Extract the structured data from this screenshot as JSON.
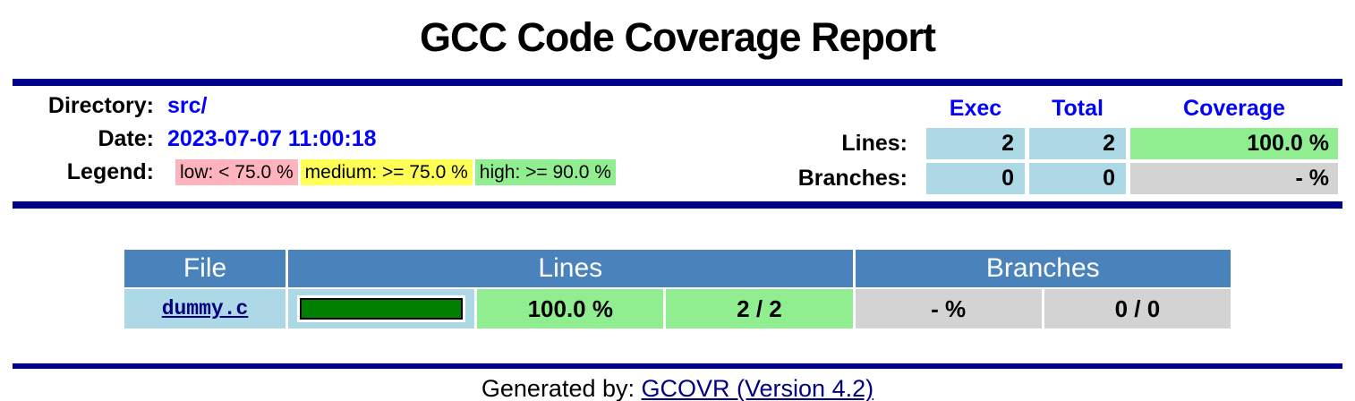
{
  "page": {
    "title": "GCC Code Coverage Report"
  },
  "summary": {
    "directory_label": "Directory:",
    "directory_value": "src/",
    "date_label": "Date:",
    "date_value": "2023-07-07 11:00:18",
    "legend_label": "Legend:",
    "legend": [
      {
        "name": "low",
        "label": "low: < 75.0 %",
        "color": "#FFB3BD"
      },
      {
        "name": "medium",
        "label": "medium: >= 75.0 %",
        "color": "#FFFF55"
      },
      {
        "name": "high",
        "label": "high: >= 90.0 %",
        "color": "#90EE90"
      }
    ],
    "metrics": {
      "col_headers": {
        "exec": "Exec",
        "total": "Total",
        "coverage": "Coverage"
      },
      "rows": [
        {
          "label": "Lines:",
          "exec": "2",
          "total": "2",
          "coverage": "100.0 %",
          "coverage_level": "high"
        },
        {
          "label": "Branches:",
          "exec": "0",
          "total": "0",
          "coverage": "- %",
          "coverage_level": "none"
        }
      ]
    }
  },
  "files_table": {
    "headers": {
      "file": "File",
      "lines": "Lines",
      "branches": "Branches"
    },
    "rows": [
      {
        "file": "dummy.c",
        "bar_percent": 100,
        "lines_coverage": "100.0 %",
        "lines_ratio": "2 / 2",
        "branches_coverage": "- %",
        "branches_ratio": "0 / 0"
      }
    ]
  },
  "footer": {
    "prefix": "Generated by: ",
    "link_label": "GCOVR (Version 4.2)"
  },
  "colors": {
    "rule_navy": "#00008B",
    "link_navy": "#000080",
    "value_blue": "#0000FF",
    "table_header_blue": "#4A83BC",
    "cell_lightblue": "#ADD8E6",
    "cell_lightgreen": "#90EE90",
    "cell_gray": "#D3D3D3",
    "legend_pink": "#FFB3BD",
    "legend_yellow": "#FFFF55",
    "legend_green": "#90EE90",
    "bar_green": "#008000"
  }
}
